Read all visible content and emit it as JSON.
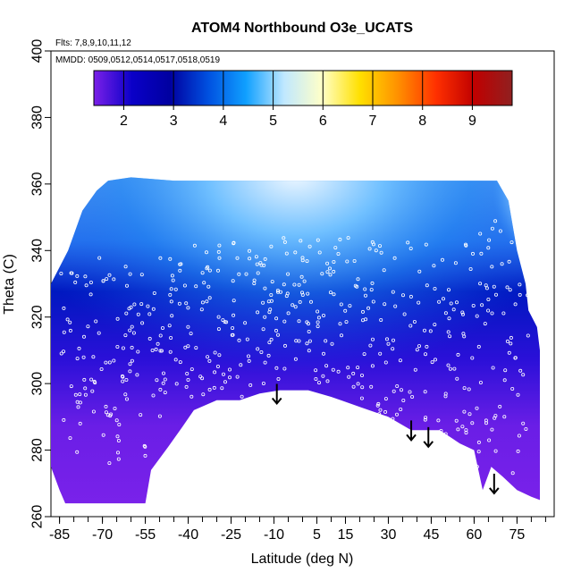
{
  "chart_data": {
    "type": "heatmap",
    "title": "ATOM4 Northbound O3e_UCATS",
    "notes": [
      "Flts: 7,8,9,10,11,12",
      "MMDD: 0509,0512,0514,0517,0518,0519"
    ],
    "xlabel": "Latitude (deg N)",
    "ylabel": "Theta (C)",
    "xlim": [
      -88,
      88
    ],
    "ylim": [
      260,
      400
    ],
    "x_ticks": [
      -85,
      -70,
      -55,
      -40,
      -25,
      -10,
      5,
      15,
      30,
      45,
      60,
      75
    ],
    "y_ticks": [
      260,
      280,
      300,
      320,
      340,
      360,
      380,
      400
    ],
    "colorbar": {
      "ticks": [
        2,
        3,
        4,
        5,
        6,
        7,
        8,
        9
      ],
      "range": [
        1.4,
        9.8
      ],
      "colors": [
        "#7b20e8",
        "#0a00c8",
        "#0000a0",
        "#0050e0",
        "#10a0ff",
        "#c0e8ff",
        "#ffffc8",
        "#ffe000",
        "#ff9000",
        "#ff3000",
        "#c00000",
        "#902020"
      ]
    },
    "arrows_lat": [
      -9,
      38,
      44,
      67
    ],
    "arrows_theta": [
      294,
      283,
      281,
      267
    ]
  }
}
